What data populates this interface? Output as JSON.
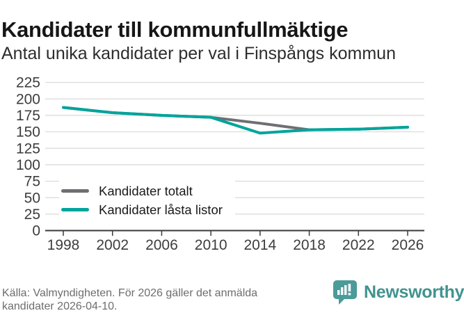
{
  "header": {
    "title": "Kandidater till kommunfullmäktige",
    "subtitle": "Antal unika kandidater per val i Finspångs kommun"
  },
  "chart_data": {
    "type": "line",
    "categories": [
      "1998",
      "2002",
      "2006",
      "2010",
      "2014",
      "2018",
      "2022",
      "2026"
    ],
    "series": [
      {
        "name": "Kandidater totalt",
        "color": "#6f6f73",
        "values": [
          187,
          179,
          175,
          172,
          163,
          153,
          154,
          157
        ]
      },
      {
        "name": "Kandidater låsta listor",
        "color": "#00a49b",
        "values": [
          187,
          179,
          175,
          172,
          148,
          153,
          154,
          157
        ]
      }
    ],
    "title": "Kandidater till kommunfullmäktige",
    "subtitle": "Antal unika kandidater per val i Finspångs kommun",
    "xlabel": "",
    "ylabel": "",
    "ylim": [
      0,
      225
    ],
    "yticks": [
      0,
      25,
      50,
      75,
      100,
      125,
      150,
      175,
      200,
      225
    ],
    "grid": true,
    "legend_position": "inside bottom-left"
  },
  "styles": {
    "grid_color": "#dcdcdc",
    "axis_color": "#3a3a3a",
    "tick_label_color": "#3d3d3d",
    "line_width": 4
  },
  "footer": {
    "source": "Källa: Valmyndigheten. För 2026 gäller det anmälda kandidater 2026-04-10."
  },
  "branding": {
    "logo_text": "Newsworthy",
    "logo_color": "#4a9b99"
  }
}
